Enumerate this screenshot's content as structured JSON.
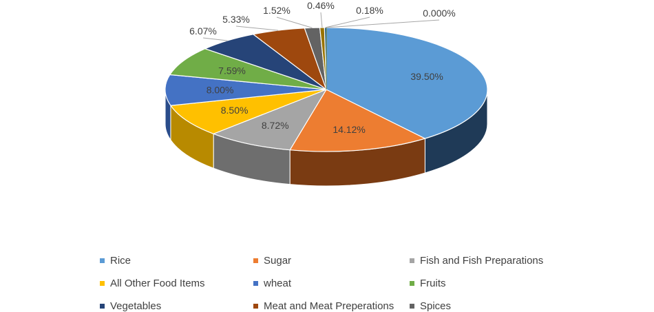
{
  "chart_data": {
    "type": "pie",
    "title": "",
    "three_d": true,
    "legend_position": "bottom",
    "slices": [
      {
        "label": "Rice",
        "value": 39.5,
        "data_label": "39.50%",
        "color": "#5B9BD5",
        "side_color": "#1F3A57"
      },
      {
        "label": "Sugar",
        "value": 14.12,
        "data_label": "14.12%",
        "color": "#ED7D31",
        "side_color": "#7A3B12"
      },
      {
        "label": "Fish and Fish Preparations",
        "value": 8.72,
        "data_label": "8.72%",
        "color": "#A5A5A5",
        "side_color": "#6E6E6E"
      },
      {
        "label": "All Other Food Items",
        "value": 8.5,
        "data_label": "8.50%",
        "color": "#FFC000",
        "side_color": "#B88A00"
      },
      {
        "label": "wheat",
        "value": 8.0,
        "data_label": "8.00%",
        "color": "#4472C4",
        "side_color": "#2A4C8A"
      },
      {
        "label": "Fruits",
        "value": 7.59,
        "data_label": "7.59%",
        "color": "#70AD47",
        "side_color": "#4A7A2C"
      },
      {
        "label": "Vegetables",
        "value": 6.07,
        "data_label": "6.07%",
        "color": "#264478",
        "side_color": "#16284A"
      },
      {
        "label": "Meat and Meat Preperations",
        "value": 5.33,
        "data_label": "5.33%",
        "color": "#9E480E",
        "side_color": "#5E2A08"
      },
      {
        "label": "Spices",
        "value": 1.52,
        "data_label": "1.52%",
        "color": "#636363",
        "side_color": "#3E3E3E"
      },
      {
        "label": "",
        "value": 0.46,
        "data_label": "0.46%",
        "color": "#997300",
        "side_color": "#6B5000"
      },
      {
        "label": "",
        "value": 0.18,
        "data_label": "0.18%",
        "color": "#255E91",
        "side_color": "#17405F"
      },
      {
        "label": "",
        "value": 0.0,
        "data_label": "0.000%",
        "color": "#43682B",
        "side_color": "#2C461C"
      }
    ]
  }
}
